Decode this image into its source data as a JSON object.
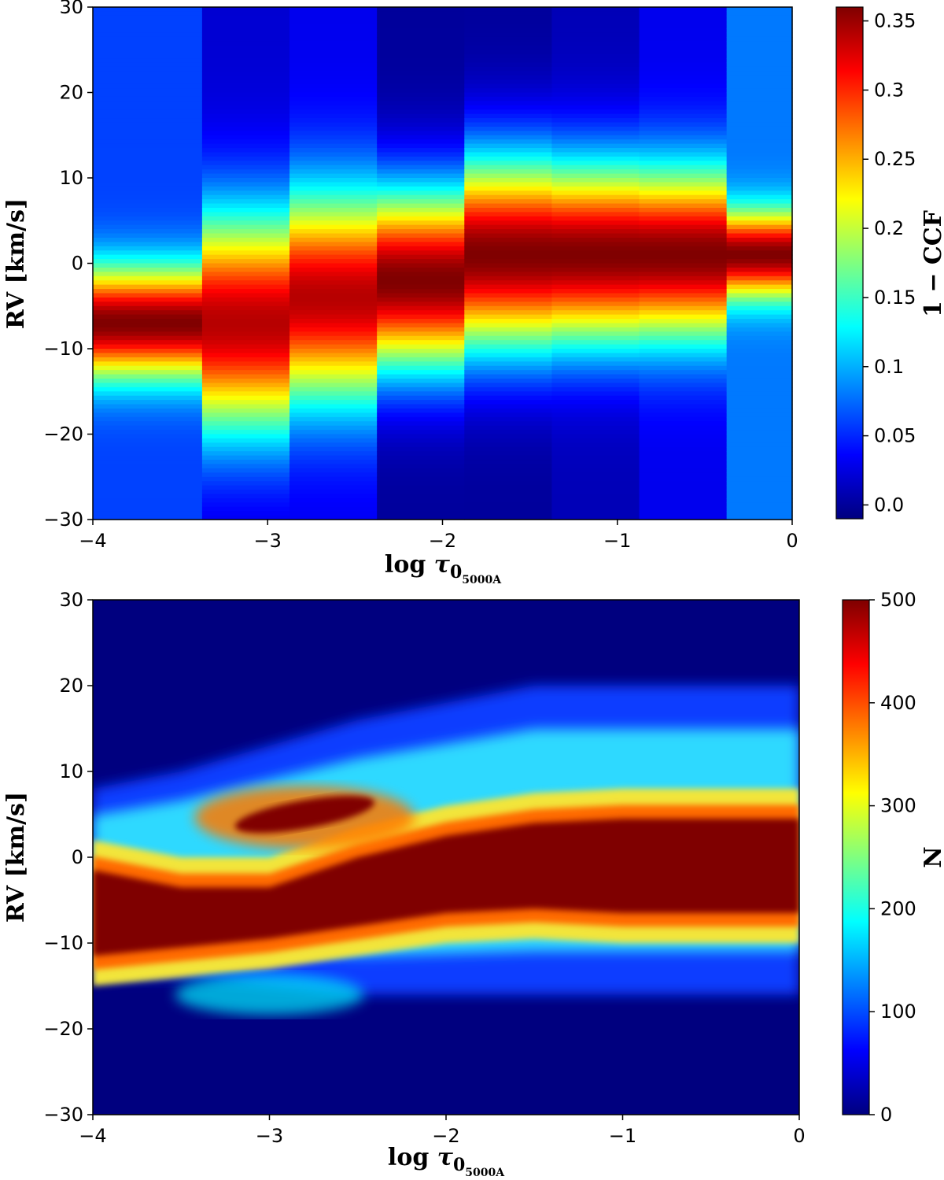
{
  "chart_data": [
    {
      "type": "heatmap",
      "panel": "top",
      "xlabel": "log τ0_5000A",
      "xlabel_parts": {
        "base": "log ",
        "symbol": "τ",
        "sub": "0",
        "subsub": "5000A"
      },
      "ylabel": "RV [km/s]",
      "xlim": [
        -4,
        0
      ],
      "ylim": [
        -30,
        30
      ],
      "xticks": [
        -4,
        -3,
        -2,
        -1,
        0
      ],
      "xtick_labels": [
        "−4",
        "−3",
        "−2",
        "−1",
        "0"
      ],
      "yticks": [
        -30,
        -20,
        -10,
        0,
        10,
        20,
        30
      ],
      "ytick_labels": [
        "−30",
        "−20",
        "−10",
        "0",
        "10",
        "20",
        "30"
      ],
      "colormap": "jet",
      "colorbar": {
        "label": "1 − CCF",
        "range": [
          -0.01,
          0.36
        ],
        "ticks": [
          0.0,
          0.05,
          0.1,
          0.15,
          0.2,
          0.25,
          0.3,
          0.35
        ],
        "tick_labels": [
          "0.0",
          "0.05",
          "0.1",
          "0.15",
          "0.2",
          "0.25",
          "0.3",
          "0.35"
        ]
      },
      "columns": [
        {
          "x_range": [
            -4.0,
            -3.375
          ],
          "peak_rv": -7,
          "peak_value": 0.36,
          "width_kms": 4.5,
          "baseline": 0.06
        },
        {
          "x_range": [
            -3.375,
            -2.875
          ],
          "peak_rv": -7,
          "peak_value": 0.34,
          "width_kms": 9,
          "baseline": 0.02
        },
        {
          "x_range": [
            -2.875,
            -2.375
          ],
          "peak_rv": -4,
          "peak_value": 0.34,
          "width_kms": 8.5,
          "baseline": 0.03
        },
        {
          "x_range": [
            -2.375,
            -1.875
          ],
          "peak_rv": -2,
          "peak_value": 0.36,
          "width_kms": 7.5,
          "baseline": 0.0
        },
        {
          "x_range": [
            -1.875,
            -1.375
          ],
          "peak_rv": 1,
          "peak_value": 0.36,
          "width_kms": 8,
          "baseline": 0.0
        },
        {
          "x_range": [
            -1.375,
            -0.875
          ],
          "peak_rv": 1,
          "peak_value": 0.36,
          "width_kms": 7.5,
          "baseline": 0.01
        },
        {
          "x_range": [
            -0.875,
            -0.375
          ],
          "peak_rv": 1,
          "peak_value": 0.36,
          "width_kms": 7,
          "baseline": 0.03
        },
        {
          "x_range": [
            -0.375,
            0.0
          ],
          "peak_rv": 1,
          "peak_value": 0.36,
          "width_kms": 3.5,
          "baseline": 0.08
        }
      ]
    },
    {
      "type": "heatmap",
      "panel": "bottom",
      "xlabel": "log τ0_5000A",
      "xlabel_parts": {
        "base": "log ",
        "symbol": "τ",
        "sub": "0",
        "subsub": "5000A"
      },
      "ylabel": "RV [km/s]",
      "xlim": [
        -4,
        0
      ],
      "ylim": [
        -30,
        30
      ],
      "xticks": [
        -4,
        -3,
        -2,
        -1,
        0
      ],
      "xtick_labels": [
        "−4",
        "−3",
        "−2",
        "−1",
        "0"
      ],
      "yticks": [
        -30,
        -20,
        -10,
        0,
        10,
        20,
        30
      ],
      "ytick_labels": [
        "−30",
        "−20",
        "−10",
        "0",
        "10",
        "20",
        "30"
      ],
      "colormap": "jet",
      "colorbar": {
        "label": "N",
        "range": [
          0,
          500
        ],
        "ticks": [
          0,
          100,
          200,
          300,
          400,
          500
        ],
        "tick_labels": [
          "0",
          "100",
          "200",
          "300",
          "400",
          "500"
        ]
      },
      "density_profile": [
        {
          "x": -4.0,
          "core_center": -6.5,
          "core_half": 5.0,
          "wide_center": -3,
          "wide_half": 11
        },
        {
          "x": -3.5,
          "core_center": -7.0,
          "core_half": 3.5,
          "wide_center": -2,
          "wide_half": 12
        },
        {
          "x": -3.0,
          "core_center": -6.5,
          "core_half": 3.0,
          "wide_center": -1,
          "wide_half": 14
        },
        {
          "x": -2.5,
          "core_center": -4.0,
          "core_half": 4.0,
          "wide_center": 0,
          "wide_half": 16
        },
        {
          "x": -2.0,
          "core_center": -2.0,
          "core_half": 4.5,
          "wide_center": 1,
          "wide_half": 17
        },
        {
          "x": -1.5,
          "core_center": -1.0,
          "core_half": 5.0,
          "wide_center": 2,
          "wide_half": 18
        },
        {
          "x": -1.0,
          "core_center": -1.0,
          "core_half": 5.5,
          "wide_center": 2,
          "wide_half": 18
        },
        {
          "x": -0.5,
          "core_center": -1.0,
          "core_half": 5.5,
          "wide_center": 2,
          "wide_half": 18
        },
        {
          "x": 0.0,
          "core_center": -1.0,
          "core_half": 5.5,
          "wide_center": 2,
          "wide_half": 18
        }
      ],
      "features": [
        {
          "name": "upper-branch",
          "x": -2.8,
          "rv": 5,
          "value": 500
        },
        {
          "name": "lower-tail",
          "x": -3.0,
          "rv": -16,
          "value": 180
        }
      ]
    }
  ]
}
